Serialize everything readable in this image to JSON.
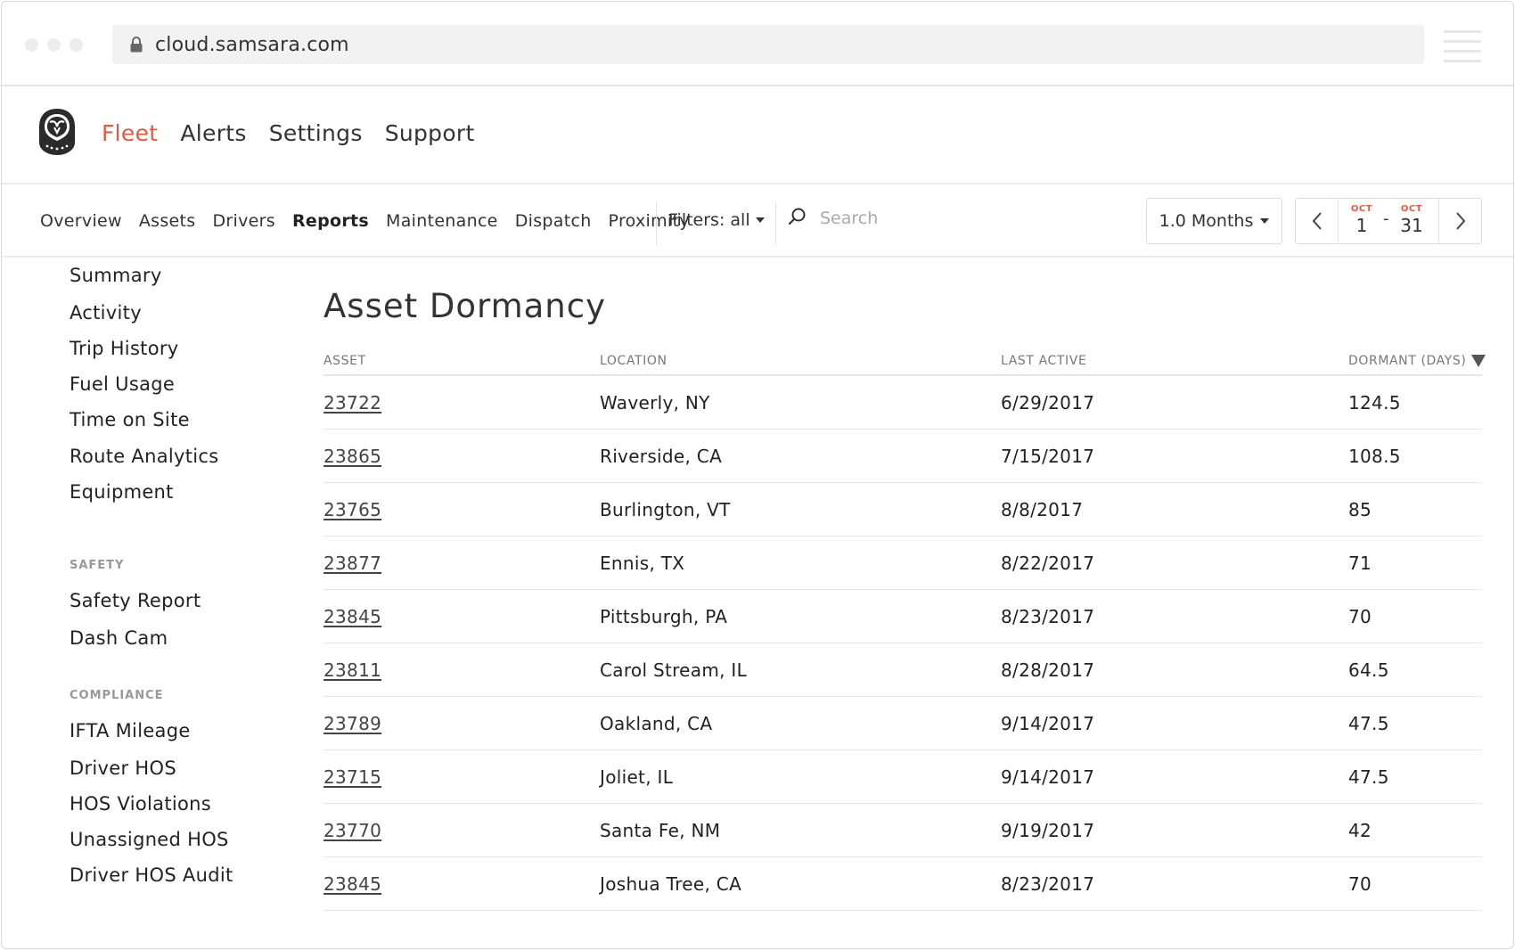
{
  "browser": {
    "url": "cloud.samsara.com"
  },
  "app": {
    "nav": [
      "Fleet",
      "Alerts",
      "Settings",
      "Support"
    ],
    "active_nav": "Fleet",
    "accent_color": "#e8593b"
  },
  "subnav": {
    "tabs": [
      "Overview",
      "Assets",
      "Drivers",
      "Reports",
      "Maintenance",
      "Dispatch",
      "Proximity"
    ],
    "active_tab": "Reports",
    "filters_label": "Filters: all",
    "search_placeholder": "Search",
    "range_label": "1.0 Months",
    "start": {
      "month": "OCT",
      "day": "1"
    },
    "end": {
      "month": "OCT",
      "day": "31"
    },
    "dash": "-"
  },
  "sidebar": {
    "items": [
      "Summary",
      "Activity",
      "Trip History",
      "Fuel Usage",
      "Time on Site",
      "Route Analytics",
      "Equipment"
    ],
    "safety_heading": "SAFETY",
    "safety_items": [
      "Safety Report",
      "Dash Cam"
    ],
    "compliance_heading": "COMPLIANCE",
    "compliance_items": [
      "IFTA Mileage",
      "Driver HOS",
      "HOS Violations",
      "Unassigned HOS",
      "Driver HOS Audit"
    ]
  },
  "report": {
    "title": "Asset Dormancy",
    "columns": [
      "ASSET",
      "LOCATION",
      "LAST ACTIVE",
      "DORMANT (DAYS)"
    ],
    "rows": [
      [
        "23722",
        "Waverly, NY",
        "6/29/2017",
        "124.5"
      ],
      [
        "23865",
        "Riverside, CA",
        "7/15/2017",
        "108.5"
      ],
      [
        "23765",
        "Burlington, VT",
        "8/8/2017",
        "85"
      ],
      [
        "23877",
        "Ennis, TX",
        "8/22/2017",
        "71"
      ],
      [
        "23845",
        "Pittsburgh, PA",
        "8/23/2017",
        "70"
      ],
      [
        "23811",
        "Carol Stream, IL",
        "8/28/2017",
        "64.5"
      ],
      [
        "23789",
        "Oakland, CA",
        "9/14/2017",
        "47.5"
      ],
      [
        "23715",
        "Joliet, IL",
        "9/14/2017",
        "47.5"
      ],
      [
        "23770",
        "Santa Fe, NM",
        "9/19/2017",
        "42"
      ],
      [
        "23845",
        "Joshua Tree, CA",
        "8/23/2017",
        "70"
      ]
    ]
  }
}
